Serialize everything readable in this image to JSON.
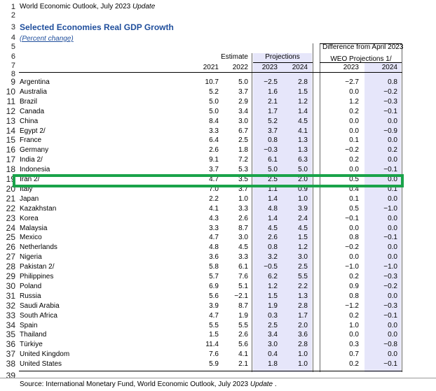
{
  "doc_title": "World Economic Outlook, July 2023 ",
  "doc_title_em": "Update",
  "table_title": "Selected Economies Real GDP Growth",
  "table_subtitle": "(Percent change)",
  "header": {
    "diff_label": "Difference from April 2023",
    "weo_label": "WEO Projections 1/",
    "estimate": "Estimate",
    "projections": "Projections",
    "y2021": "2021",
    "y2022": "2022",
    "y2023": "2023",
    "y2024": "2024",
    "d2023": "2023",
    "d2024": "2024"
  },
  "row_numbers": [
    "1",
    "2",
    "3",
    "4",
    "5",
    "6",
    "7",
    "8",
    "9",
    "10",
    "11",
    "12",
    "13",
    "14",
    "15",
    "16",
    "17",
    "18",
    "19",
    "20",
    "21",
    "22",
    "23",
    "24",
    "25",
    "26",
    "27",
    "28",
    "29",
    "30",
    "31",
    "32",
    "33",
    "34",
    "35",
    "36",
    "37",
    "38",
    "39"
  ],
  "rows": [
    {
      "name": "Argentina",
      "v2021": "10.7",
      "v2022": "5.0",
      "v2023": "−2.5",
      "v2024": "2.8",
      "d2023": "−2.7",
      "d2024": "0.8"
    },
    {
      "name": "Australia",
      "v2021": "5.2",
      "v2022": "3.7",
      "v2023": "1.6",
      "v2024": "1.5",
      "d2023": "0.0",
      "d2024": "−0.2"
    },
    {
      "name": "Brazil",
      "v2021": "5.0",
      "v2022": "2.9",
      "v2023": "2.1",
      "v2024": "1.2",
      "d2023": "1.2",
      "d2024": "−0.3"
    },
    {
      "name": "Canada",
      "v2021": "5.0",
      "v2022": "3.4",
      "v2023": "1.7",
      "v2024": "1.4",
      "d2023": "0.2",
      "d2024": "−0.1"
    },
    {
      "name": "China",
      "v2021": "8.4",
      "v2022": "3.0",
      "v2023": "5.2",
      "v2024": "4.5",
      "d2023": "0.0",
      "d2024": "0.0"
    },
    {
      "name": "Egypt 2/",
      "v2021": "3.3",
      "v2022": "6.7",
      "v2023": "3.7",
      "v2024": "4.1",
      "d2023": "0.0",
      "d2024": "−0.9"
    },
    {
      "name": "France",
      "v2021": "6.4",
      "v2022": "2.5",
      "v2023": "0.8",
      "v2024": "1.3",
      "d2023": "0.1",
      "d2024": "0.0"
    },
    {
      "name": "Germany",
      "v2021": "2.6",
      "v2022": "1.8",
      "v2023": "−0.3",
      "v2024": "1.3",
      "d2023": "−0.2",
      "d2024": "0.2"
    },
    {
      "name": "India 2/",
      "v2021": "9.1",
      "v2022": "7.2",
      "v2023": "6.1",
      "v2024": "6.3",
      "d2023": "0.2",
      "d2024": "0.0"
    },
    {
      "name": "Indonesia",
      "v2021": "3.7",
      "v2022": "5.3",
      "v2023": "5.0",
      "v2024": "5.0",
      "d2023": "0.0",
      "d2024": "−0.1"
    },
    {
      "name": "Iran 2/",
      "v2021": "4.7",
      "v2022": "3.5",
      "v2023": "2.5",
      "v2024": "2.0",
      "d2023": "0.5",
      "d2024": "0.0"
    },
    {
      "name": "Italy",
      "v2021": "7.0",
      "v2022": "3.7",
      "v2023": "1.1",
      "v2024": "0.9",
      "d2023": "0.4",
      "d2024": "0.1"
    },
    {
      "name": "Japan",
      "v2021": "2.2",
      "v2022": "1.0",
      "v2023": "1.4",
      "v2024": "1.0",
      "d2023": "0.1",
      "d2024": "0.0"
    },
    {
      "name": "Kazakhstan",
      "v2021": "4.1",
      "v2022": "3.3",
      "v2023": "4.8",
      "v2024": "3.9",
      "d2023": "0.5",
      "d2024": "−1.0"
    },
    {
      "name": "Korea",
      "v2021": "4.3",
      "v2022": "2.6",
      "v2023": "1.4",
      "v2024": "2.4",
      "d2023": "−0.1",
      "d2024": "0.0"
    },
    {
      "name": "Malaysia",
      "v2021": "3.3",
      "v2022": "8.7",
      "v2023": "4.5",
      "v2024": "4.5",
      "d2023": "0.0",
      "d2024": "0.0"
    },
    {
      "name": "Mexico",
      "v2021": "4.7",
      "v2022": "3.0",
      "v2023": "2.6",
      "v2024": "1.5",
      "d2023": "0.8",
      "d2024": "−0.1"
    },
    {
      "name": "Netherlands",
      "v2021": "4.8",
      "v2022": "4.5",
      "v2023": "0.8",
      "v2024": "1.2",
      "d2023": "−0.2",
      "d2024": "0.0"
    },
    {
      "name": "Nigeria",
      "v2021": "3.6",
      "v2022": "3.3",
      "v2023": "3.2",
      "v2024": "3.0",
      "d2023": "0.0",
      "d2024": "0.0"
    },
    {
      "name": "Pakistan 2/",
      "v2021": "5.8",
      "v2022": "6.1",
      "v2023": "−0.5",
      "v2024": "2.5",
      "d2023": "−1.0",
      "d2024": "−1.0"
    },
    {
      "name": "Philippines",
      "v2021": "5.7",
      "v2022": "7.6",
      "v2023": "6.2",
      "v2024": "5.5",
      "d2023": "0.2",
      "d2024": "−0.3"
    },
    {
      "name": "Poland",
      "v2021": "6.9",
      "v2022": "5.1",
      "v2023": "1.2",
      "v2024": "2.2",
      "d2023": "0.9",
      "d2024": "−0.2"
    },
    {
      "name": "Russia",
      "v2021": "5.6",
      "v2022": "−2.1",
      "v2023": "1.5",
      "v2024": "1.3",
      "d2023": "0.8",
      "d2024": "0.0"
    },
    {
      "name": "Saudi Arabia",
      "v2021": "3.9",
      "v2022": "8.7",
      "v2023": "1.9",
      "v2024": "2.8",
      "d2023": "−1.2",
      "d2024": "−0.3"
    },
    {
      "name": "South Africa",
      "v2021": "4.7",
      "v2022": "1.9",
      "v2023": "0.3",
      "v2024": "1.7",
      "d2023": "0.2",
      "d2024": "−0.1"
    },
    {
      "name": "Spain",
      "v2021": "5.5",
      "v2022": "5.5",
      "v2023": "2.5",
      "v2024": "2.0",
      "d2023": "1.0",
      "d2024": "0.0"
    },
    {
      "name": "Thailand",
      "v2021": "1.5",
      "v2022": "2.6",
      "v2023": "3.4",
      "v2024": "3.6",
      "d2023": "0.0",
      "d2024": "0.0"
    },
    {
      "name": "Türkiye",
      "v2021": "11.4",
      "v2022": "5.6",
      "v2023": "3.0",
      "v2024": "2.8",
      "d2023": "0.3",
      "d2024": "−0.8"
    },
    {
      "name": "United Kingdom",
      "v2021": "7.6",
      "v2022": "4.1",
      "v2023": "0.4",
      "v2024": "1.0",
      "d2023": "0.7",
      "d2024": "0.0"
    },
    {
      "name": "United States",
      "v2021": "5.9",
      "v2022": "2.1",
      "v2023": "1.8",
      "v2024": "1.0",
      "d2023": "0.2",
      "d2024": "−0.1"
    }
  ],
  "source": "Source: International Monetary Fund, World Economic Outlook, July 2023 ",
  "source_em": "Update",
  "source_end": " ."
}
